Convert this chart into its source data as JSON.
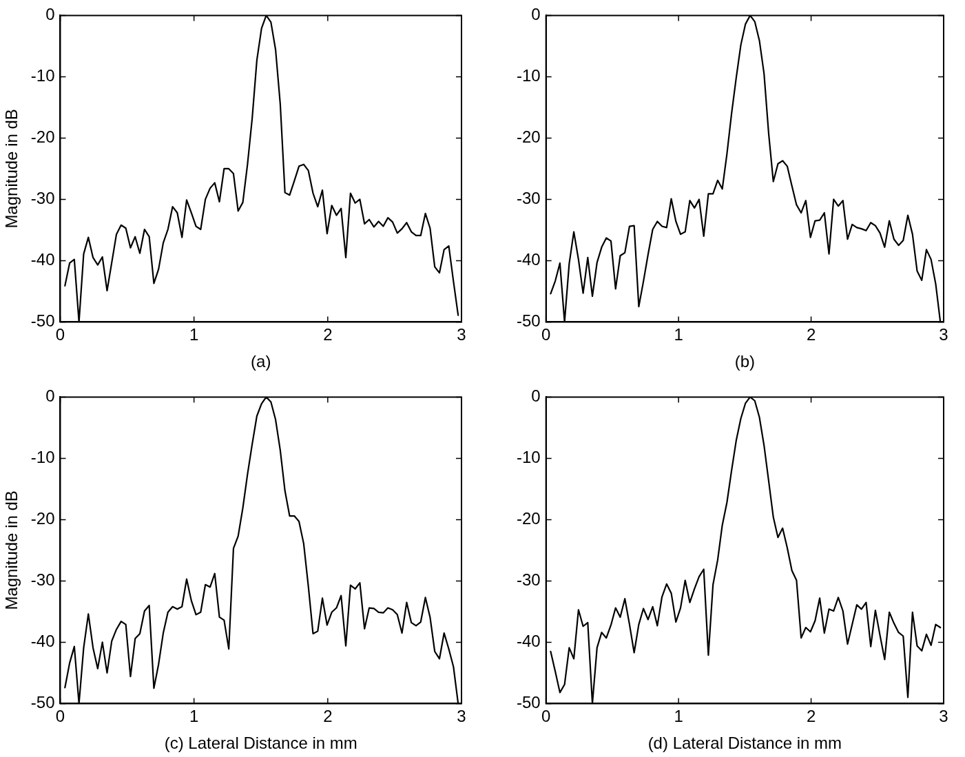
{
  "chart_data": [
    {
      "type": "line",
      "xlabel": "(a)",
      "ylabel": "Magnitude in dB",
      "xlim": [
        0,
        3
      ],
      "ylim": [
        -50,
        0
      ],
      "xticks": [
        0,
        1,
        2,
        3
      ],
      "yticks": [
        -50,
        -40,
        -30,
        -20,
        -10,
        0
      ],
      "grid": false,
      "legend": false,
      "marker": "none",
      "line_style": "solid",
      "x": [
        0.035,
        0.07,
        0.105,
        0.14,
        0.175,
        0.21,
        0.245,
        0.28,
        0.315,
        0.35,
        0.385,
        0.42,
        0.455,
        0.49,
        0.525,
        0.56,
        0.595,
        0.63,
        0.665,
        0.7,
        0.735,
        0.77,
        0.805,
        0.84,
        0.875,
        0.91,
        0.945,
        0.98,
        1.015,
        1.05,
        1.085,
        1.12,
        1.155,
        1.19,
        1.225,
        1.26,
        1.295,
        1.33,
        1.365,
        1.4,
        1.435,
        1.47,
        1.505,
        1.54,
        1.575,
        1.61,
        1.645,
        1.68,
        1.715,
        1.75,
        1.785,
        1.82,
        1.855,
        1.89,
        1.925,
        1.96,
        1.995,
        2.03,
        2.065,
        2.1,
        2.135,
        2.17,
        2.205,
        2.24,
        2.275,
        2.31,
        2.345,
        2.38,
        2.415,
        2.45,
        2.485,
        2.52,
        2.555,
        2.59,
        2.625,
        2.66,
        2.695,
        2.73,
        2.765,
        2.8,
        2.835,
        2.87,
        2.905,
        2.94,
        2.975
      ],
      "series": [
        {
          "color": "#000000",
          "values": [
            -44.1,
            -40.4,
            -39.8,
            -50,
            -38.9,
            -36.2,
            -39.5,
            -40.7,
            -39.4,
            -44.9,
            -40.3,
            -35.7,
            -34.2,
            -34.7,
            -37.9,
            -36.1,
            -38.8,
            -34.9,
            -36.1,
            -43.7,
            -41.4,
            -37.1,
            -34.9,
            -31.2,
            -32.2,
            -36.2,
            -30.1,
            -32.2,
            -34.4,
            -34.9,
            -30.0,
            -28.2,
            -27.3,
            -30.4,
            -25.0,
            -25.0,
            -25.8,
            -31.9,
            -30.5,
            -24.3,
            -16.8,
            -7.3,
            -2.1,
            0,
            -1.1,
            -5.6,
            -14.5,
            -28.9,
            -29.3,
            -27.0,
            -24.6,
            -24.3,
            -25.3,
            -29.0,
            -31.2,
            -28.5,
            -35.6,
            -31.0,
            -32.6,
            -31.5,
            -39.5,
            -29.0,
            -30.6,
            -30.0,
            -34.0,
            -33.3,
            -34.5,
            -33.6,
            -34.4,
            -33.0,
            -33.7,
            -35.5,
            -34.8,
            -33.8,
            -35.3,
            -35.9,
            -35.9,
            -32.3,
            -34.7,
            -41.0,
            -42.0,
            -38.2,
            -37.6,
            -43.4,
            -48.9
          ]
        }
      ]
    },
    {
      "type": "line",
      "xlabel": "(b)",
      "xlim": [
        0,
        3
      ],
      "ylim": [
        -50,
        0
      ],
      "xticks": [
        0,
        1,
        2,
        3
      ],
      "yticks": [
        -50,
        -40,
        -30,
        -20,
        -10,
        0
      ],
      "grid": false,
      "legend": false,
      "marker": "none",
      "line_style": "solid",
      "x": [
        0.035,
        0.07,
        0.105,
        0.14,
        0.175,
        0.21,
        0.245,
        0.28,
        0.315,
        0.35,
        0.385,
        0.42,
        0.455,
        0.49,
        0.525,
        0.56,
        0.595,
        0.63,
        0.665,
        0.7,
        0.735,
        0.77,
        0.805,
        0.84,
        0.875,
        0.91,
        0.945,
        0.98,
        1.015,
        1.05,
        1.085,
        1.12,
        1.155,
        1.19,
        1.225,
        1.26,
        1.295,
        1.33,
        1.365,
        1.4,
        1.435,
        1.47,
        1.505,
        1.54,
        1.575,
        1.61,
        1.645,
        1.68,
        1.715,
        1.75,
        1.785,
        1.82,
        1.855,
        1.89,
        1.925,
        1.96,
        1.995,
        2.03,
        2.065,
        2.1,
        2.135,
        2.17,
        2.205,
        2.24,
        2.275,
        2.31,
        2.345,
        2.38,
        2.415,
        2.45,
        2.485,
        2.52,
        2.555,
        2.59,
        2.625,
        2.66,
        2.695,
        2.73,
        2.765,
        2.8,
        2.835,
        2.87,
        2.905,
        2.94,
        2.975
      ],
      "series": [
        {
          "color": "#000000",
          "values": [
            -45.4,
            -43.3,
            -40.4,
            -50,
            -40.5,
            -35.3,
            -39.8,
            -45.3,
            -39.5,
            -45.8,
            -40.3,
            -37.8,
            -36.3,
            -36.8,
            -44.6,
            -39.2,
            -38.7,
            -34.4,
            -34.3,
            -47.5,
            -43.4,
            -39.0,
            -34.9,
            -33.6,
            -34.4,
            -34.6,
            -29.9,
            -33.6,
            -35.7,
            -35.3,
            -30.2,
            -31.4,
            -30.0,
            -36.0,
            -29.1,
            -29.1,
            -26.9,
            -28.3,
            -22.6,
            -16.0,
            -10.2,
            -4.8,
            -1.4,
            0,
            -1.0,
            -4.1,
            -9.5,
            -19.3,
            -27.1,
            -24.2,
            -23.7,
            -24.6,
            -27.8,
            -30.9,
            -32.2,
            -30.2,
            -36.2,
            -33.5,
            -33.4,
            -32.2,
            -38.9,
            -30.0,
            -31.1,
            -30.2,
            -36.5,
            -34.1,
            -34.6,
            -34.8,
            -35.1,
            -33.8,
            -34.3,
            -35.5,
            -37.8,
            -33.5,
            -36.5,
            -37.5,
            -36.7,
            -32.6,
            -35.7,
            -41.7,
            -43.2,
            -38.2,
            -39.8,
            -43.8,
            -50
          ]
        }
      ]
    },
    {
      "type": "line",
      "xlabel": "(c) Lateral Distance in mm",
      "ylabel": "Magnitude in dB",
      "xlim": [
        0,
        3
      ],
      "ylim": [
        -50,
        0
      ],
      "xticks": [
        0,
        1,
        2,
        3
      ],
      "yticks": [
        -50,
        -40,
        -30,
        -20,
        -10,
        0
      ],
      "grid": false,
      "legend": false,
      "marker": "none",
      "line_style": "solid",
      "x": [
        0.035,
        0.07,
        0.105,
        0.14,
        0.175,
        0.21,
        0.245,
        0.28,
        0.315,
        0.35,
        0.385,
        0.42,
        0.455,
        0.49,
        0.525,
        0.56,
        0.595,
        0.63,
        0.665,
        0.7,
        0.735,
        0.77,
        0.805,
        0.84,
        0.875,
        0.91,
        0.945,
        0.98,
        1.015,
        1.05,
        1.085,
        1.12,
        1.155,
        1.19,
        1.225,
        1.26,
        1.295,
        1.33,
        1.365,
        1.4,
        1.435,
        1.47,
        1.505,
        1.54,
        1.575,
        1.61,
        1.645,
        1.68,
        1.715,
        1.75,
        1.785,
        1.82,
        1.855,
        1.89,
        1.925,
        1.96,
        1.995,
        2.03,
        2.065,
        2.1,
        2.135,
        2.17,
        2.205,
        2.24,
        2.275,
        2.31,
        2.345,
        2.38,
        2.415,
        2.45,
        2.485,
        2.52,
        2.555,
        2.59,
        2.625,
        2.66,
        2.695,
        2.73,
        2.765,
        2.8,
        2.835,
        2.87,
        2.905,
        2.94,
        2.975
      ],
      "series": [
        {
          "color": "#000000",
          "values": [
            -47.4,
            -43.4,
            -40.7,
            -50,
            -40.9,
            -35.4,
            -40.9,
            -44.3,
            -40.0,
            -45.0,
            -39.8,
            -37.9,
            -36.6,
            -37.1,
            -45.6,
            -39.4,
            -38.6,
            -34.9,
            -34.0,
            -47.5,
            -43.6,
            -38.5,
            -35.1,
            -34.2,
            -34.6,
            -34.2,
            -29.7,
            -33.2,
            -35.5,
            -35.1,
            -30.6,
            -31.0,
            -28.8,
            -35.9,
            -36.4,
            -41.1,
            -24.7,
            -22.7,
            -18.1,
            -12.6,
            -7.7,
            -3.1,
            -1.1,
            0,
            -0.8,
            -3.7,
            -8.7,
            -15.3,
            -19.4,
            -19.4,
            -20.3,
            -23.9,
            -30.9,
            -38.6,
            -38.2,
            -32.8,
            -37.2,
            -35.1,
            -34.4,
            -32.4,
            -40.6,
            -30.7,
            -31.3,
            -30.3,
            -37.8,
            -34.4,
            -34.5,
            -35.1,
            -35.2,
            -34.4,
            -34.7,
            -35.5,
            -38.5,
            -33.5,
            -36.8,
            -37.3,
            -36.7,
            -32.7,
            -35.9,
            -41.5,
            -42.7,
            -38.5,
            -41.1,
            -44.0,
            -50
          ]
        }
      ]
    },
    {
      "type": "line",
      "xlabel": "(d) Lateral Distance in mm",
      "xlim": [
        0,
        3
      ],
      "ylim": [
        -50,
        0
      ],
      "xticks": [
        0,
        1,
        2,
        3
      ],
      "yticks": [
        -50,
        -40,
        -30,
        -20,
        -10,
        0
      ],
      "grid": false,
      "legend": false,
      "marker": "none",
      "line_style": "solid",
      "x": [
        0.035,
        0.07,
        0.105,
        0.14,
        0.175,
        0.21,
        0.245,
        0.28,
        0.315,
        0.35,
        0.385,
        0.42,
        0.455,
        0.49,
        0.525,
        0.56,
        0.595,
        0.63,
        0.665,
        0.7,
        0.735,
        0.77,
        0.805,
        0.84,
        0.875,
        0.91,
        0.945,
        0.98,
        1.015,
        1.05,
        1.085,
        1.12,
        1.155,
        1.19,
        1.225,
        1.26,
        1.295,
        1.33,
        1.365,
        1.4,
        1.435,
        1.47,
        1.505,
        1.54,
        1.575,
        1.61,
        1.645,
        1.68,
        1.715,
        1.75,
        1.785,
        1.82,
        1.855,
        1.89,
        1.925,
        1.96,
        1.995,
        2.03,
        2.065,
        2.1,
        2.135,
        2.17,
        2.205,
        2.24,
        2.275,
        2.31,
        2.345,
        2.38,
        2.415,
        2.45,
        2.485,
        2.52,
        2.555,
        2.59,
        2.625,
        2.66,
        2.695,
        2.73,
        2.765,
        2.8,
        2.835,
        2.87,
        2.905,
        2.94,
        2.975
      ],
      "series": [
        {
          "color": "#000000",
          "values": [
            -41.5,
            -44.8,
            -48.2,
            -46.9,
            -40.9,
            -42.7,
            -34.7,
            -37.4,
            -36.8,
            -50,
            -40.9,
            -38.4,
            -39.3,
            -37.2,
            -34.4,
            -35.9,
            -32.9,
            -37.1,
            -41.7,
            -37.1,
            -34.5,
            -36.3,
            -34.2,
            -37.3,
            -32.6,
            -30.5,
            -32.0,
            -36.7,
            -34.4,
            -29.9,
            -33.5,
            -31.3,
            -29.3,
            -28.1,
            -42.1,
            -30.6,
            -26.6,
            -20.9,
            -17.2,
            -12.0,
            -7.1,
            -3.5,
            -1.0,
            0,
            -0.6,
            -3.3,
            -7.9,
            -13.7,
            -19.6,
            -22.9,
            -21.4,
            -24.6,
            -28.3,
            -29.9,
            -39.3,
            -37.6,
            -38.3,
            -36.5,
            -32.8,
            -38.5,
            -34.6,
            -34.9,
            -32.7,
            -34.9,
            -40.3,
            -37.1,
            -33.9,
            -34.6,
            -33.5,
            -40.7,
            -34.8,
            -38.9,
            -42.8,
            -35.1,
            -36.9,
            -38.4,
            -39.0,
            -49.0,
            -35.1,
            -40.6,
            -41.4,
            -38.7,
            -40.5,
            -37.1,
            -37.6
          ]
        }
      ]
    }
  ]
}
